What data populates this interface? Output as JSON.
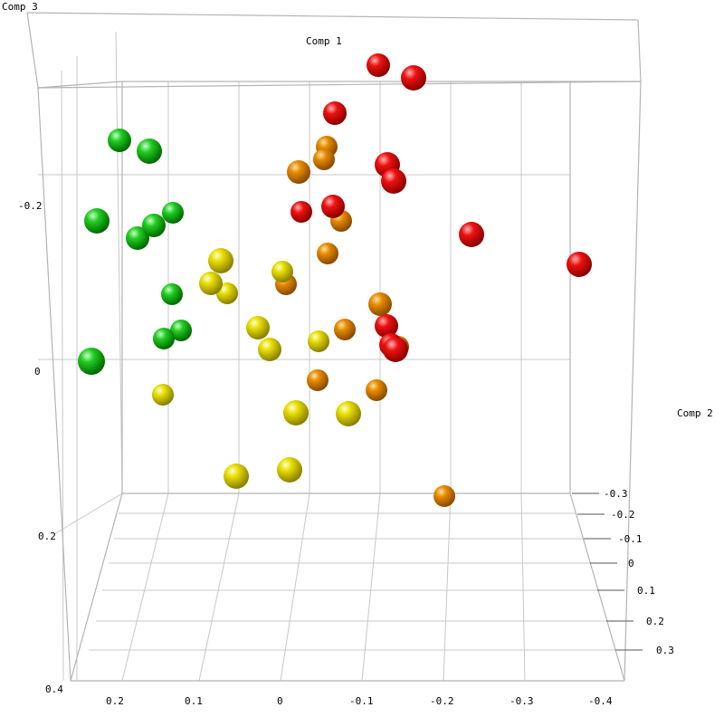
{
  "chart_data": {
    "type": "scatter",
    "subtype": "3d-scatter",
    "axes": {
      "x": {
        "label": "Comp 1",
        "ticks": [
          "0.2",
          "0.1",
          "0",
          "-0.1",
          "-0.2",
          "-0.3",
          "-0.4"
        ]
      },
      "y": {
        "label": "Comp 2",
        "ticks": [
          "-0.3",
          "-0.2",
          "-0.1",
          "0",
          "0.1",
          "0.2",
          "0.3"
        ]
      },
      "z": {
        "label": "Comp 3",
        "ticks": [
          "-0.2",
          "0",
          "0.2",
          "0.4"
        ]
      }
    },
    "grid": true,
    "colors": {
      "green": "#1fcc1f",
      "yellow": "#e0d800",
      "orange": "#e68a00",
      "red": "#dd0000"
    },
    "points": [
      {
        "color": "red"
      },
      {
        "color": "red"
      },
      {
        "color": "red"
      },
      {
        "color": "red"
      },
      {
        "color": "red"
      },
      {
        "color": "red"
      },
      {
        "color": "red"
      },
      {
        "color": "red"
      },
      {
        "color": "red"
      },
      {
        "color": "red"
      },
      {
        "color": "red"
      },
      {
        "color": "red"
      },
      {
        "color": "orange"
      },
      {
        "color": "orange"
      },
      {
        "color": "orange"
      },
      {
        "color": "orange"
      },
      {
        "color": "orange"
      },
      {
        "color": "orange"
      },
      {
        "color": "orange"
      },
      {
        "color": "orange"
      },
      {
        "color": "orange"
      },
      {
        "color": "orange"
      },
      {
        "color": "orange"
      },
      {
        "color": "orange"
      },
      {
        "color": "green"
      },
      {
        "color": "green"
      },
      {
        "color": "green"
      },
      {
        "color": "green"
      },
      {
        "color": "green"
      },
      {
        "color": "green"
      },
      {
        "color": "green"
      },
      {
        "color": "green"
      },
      {
        "color": "green"
      },
      {
        "color": "green"
      },
      {
        "color": "yellow"
      },
      {
        "color": "yellow"
      },
      {
        "color": "yellow"
      },
      {
        "color": "yellow"
      },
      {
        "color": "yellow"
      },
      {
        "color": "yellow"
      },
      {
        "color": "yellow"
      },
      {
        "color": "yellow"
      },
      {
        "color": "yellow"
      },
      {
        "color": "yellow"
      },
      {
        "color": "yellow"
      },
      {
        "color": "yellow"
      }
    ]
  }
}
